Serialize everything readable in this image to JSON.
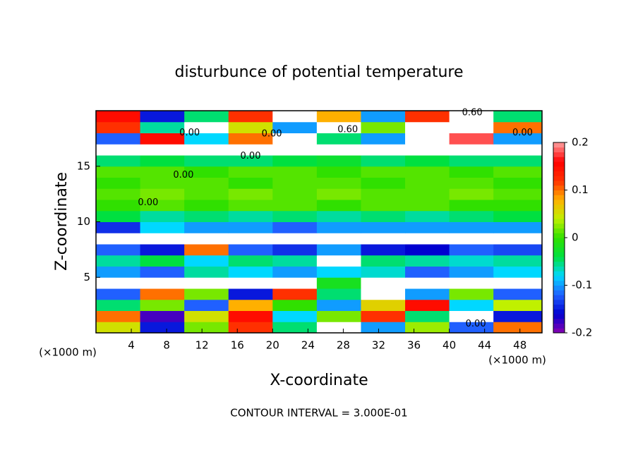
{
  "chart_data": {
    "type": "heatmap",
    "title": "disturbunce of potential temperature",
    "x_label": "X-coordinate",
    "y_label": "Z-coordinate",
    "x_unit_label": "(×1000 m)",
    "x_unit_label_right": "(×1000 m)",
    "footer": "CONTOUR INTERVAL = 3.000E-01",
    "xlim": [
      0,
      50.5
    ],
    "ylim": [
      0,
      20
    ],
    "xticks": [
      4,
      8,
      12,
      16,
      20,
      24,
      28,
      32,
      36,
      40,
      44,
      48
    ],
    "yticks": [
      5,
      10,
      15
    ],
    "xbins": [
      0,
      5,
      10,
      15,
      20,
      25,
      30,
      35,
      40,
      45,
      50.5
    ],
    "ybins": [
      0,
      1,
      2,
      3,
      4,
      5,
      6,
      7,
      8,
      9,
      10,
      11,
      12,
      13,
      14,
      15,
      16,
      17,
      18,
      19,
      20
    ],
    "z": [
      [
        0.05,
        -0.15,
        0.02,
        0.12,
        -0.05,
        0.25,
        -0.1,
        0.03,
        -0.12,
        0.1
      ],
      [
        0.1,
        -0.18,
        0.05,
        0.15,
        -0.08,
        0.02,
        0.12,
        -0.05,
        0.25,
        -0.15
      ],
      [
        -0.05,
        0.02,
        -0.12,
        0.08,
        0.0,
        -0.1,
        0.06,
        0.15,
        -0.08,
        0.04
      ],
      [
        -0.12,
        0.1,
        0.02,
        -0.15,
        0.12,
        -0.05,
        0.25,
        -0.1,
        0.02,
        -0.12
      ],
      [
        0.25,
        0.25,
        0.25,
        0.25,
        0.25,
        -0.02,
        0.25,
        0.25,
        0.25,
        0.25
      ],
      [
        -0.1,
        -0.12,
        -0.06,
        -0.08,
        -0.1,
        -0.08,
        -0.07,
        -0.12,
        -0.1,
        -0.08
      ],
      [
        -0.06,
        -0.04,
        -0.08,
        -0.05,
        -0.06,
        0.25,
        -0.05,
        -0.06,
        -0.07,
        -0.06
      ],
      [
        -0.12,
        -0.15,
        0.1,
        -0.12,
        -0.14,
        -0.1,
        -0.15,
        -0.16,
        -0.12,
        -0.13
      ],
      [
        0.25,
        0.25,
        0.25,
        0.25,
        0.25,
        0.25,
        0.25,
        0.25,
        0.25,
        0.25
      ],
      [
        -0.14,
        -0.08,
        -0.1,
        -0.1,
        -0.12,
        -0.1,
        -0.1,
        -0.1,
        -0.1,
        -0.1
      ],
      [
        -0.04,
        -0.06,
        -0.05,
        -0.06,
        -0.05,
        -0.06,
        -0.05,
        -0.06,
        -0.05,
        -0.04
      ],
      [
        0.0,
        0.01,
        0.0,
        0.01,
        0.01,
        0.0,
        0.01,
        0.01,
        0.0,
        0.0
      ],
      [
        0.01,
        0.02,
        0.01,
        0.02,
        0.01,
        0.02,
        0.01,
        0.01,
        0.02,
        0.01
      ],
      [
        0.0,
        0.01,
        0.01,
        0.0,
        0.01,
        0.01,
        0.0,
        0.01,
        0.01,
        0.0
      ],
      [
        0.01,
        0.01,
        0.0,
        0.01,
        0.01,
        0.0,
        0.01,
        0.01,
        0.0,
        0.01
      ],
      [
        -0.05,
        -0.04,
        -0.05,
        -0.05,
        -0.04,
        -0.03,
        -0.05,
        -0.04,
        -0.05,
        -0.05
      ],
      [
        0.25,
        0.25,
        0.25,
        0.25,
        0.25,
        0.25,
        0.25,
        0.25,
        0.25,
        0.25
      ],
      [
        -0.12,
        0.15,
        -0.08,
        0.1,
        0.25,
        -0.05,
        -0.1,
        0.25,
        0.18,
        -0.1
      ],
      [
        0.12,
        -0.06,
        0.25,
        0.05,
        -0.1,
        0.25,
        0.02,
        0.25,
        0.25,
        0.1
      ],
      [
        0.15,
        -0.15,
        -0.05,
        0.12,
        0.25,
        0.08,
        -0.1,
        0.12,
        0.25,
        -0.05
      ]
    ],
    "zlim": [
      -0.2,
      0.2
    ],
    "zticks": [
      -0.2,
      -0.1,
      0,
      0.1,
      0.2
    ],
    "colorscale": [
      "#8a00b0",
      "#0000d0",
      "#2060ff",
      "#00d8ff",
      "#00e040",
      "#30e000",
      "#c0f000",
      "#ffb000",
      "#ff3000",
      "#ff0000",
      "#ffa0a0"
    ],
    "out_of_range_color": "#ffffff",
    "annotations": [
      {
        "text": "0.00",
        "x": 10.6,
        "y": 18.0
      },
      {
        "text": "0.00",
        "x": 19.9,
        "y": 17.9
      },
      {
        "text": "0.60",
        "x": 28.5,
        "y": 18.3
      },
      {
        "text": "0.60",
        "x": 42.6,
        "y": 19.8
      },
      {
        "text": "0.00",
        "x": 48.3,
        "y": 18.0
      },
      {
        "text": "0.00",
        "x": 17.5,
        "y": 15.9
      },
      {
        "text": "0.00",
        "x": 9.9,
        "y": 14.2
      },
      {
        "text": "0.00",
        "x": 5.9,
        "y": 11.7
      },
      {
        "text": "0.00",
        "x": 43.0,
        "y": 0.8
      }
    ]
  }
}
